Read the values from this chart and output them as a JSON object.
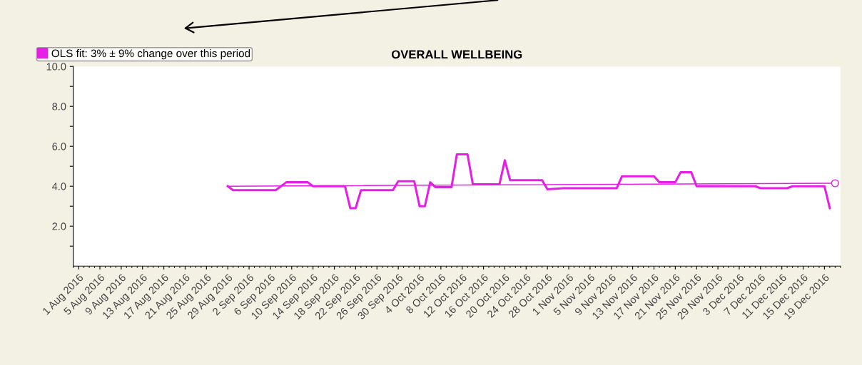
{
  "chart_data": {
    "type": "line",
    "title": "OVERALL WELLBEING",
    "series": [
      {
        "color": "#e61ee6",
        "marker": "none",
        "x": [
          "2016-08-29",
          "2016-08-30",
          "2016-09-07",
          "2016-09-09",
          "2016-09-13",
          "2016-09-14",
          "2016-09-20",
          "2016-09-21",
          "2016-09-22",
          "2016-09-23",
          "2016-09-29",
          "2016-09-30",
          "2016-10-03",
          "2016-10-04",
          "2016-10-05",
          "2016-10-06",
          "2016-10-07",
          "2016-10-10",
          "2016-10-11",
          "2016-10-13",
          "2016-10-14",
          "2016-10-19",
          "2016-10-20",
          "2016-10-21",
          "2016-10-27",
          "2016-10-28",
          "2016-10-31",
          "2016-11-10",
          "2016-11-11",
          "2016-11-17",
          "2016-11-18",
          "2016-11-21",
          "2016-11-22",
          "2016-11-24",
          "2016-11-25",
          "2016-12-06",
          "2016-12-07",
          "2016-12-12",
          "2016-12-13",
          "2016-12-19",
          "2016-12-20"
        ],
        "values": [
          4.0,
          3.8,
          3.8,
          4.2,
          4.2,
          4.0,
          4.0,
          2.9,
          2.9,
          3.8,
          3.8,
          4.25,
          4.25,
          3.0,
          3.0,
          4.2,
          3.95,
          3.95,
          5.6,
          5.6,
          4.1,
          4.1,
          5.3,
          4.3,
          4.3,
          3.85,
          3.9,
          3.9,
          4.5,
          4.5,
          4.2,
          4.2,
          4.7,
          4.7,
          4.0,
          4.0,
          3.9,
          3.9,
          4.0,
          4.0,
          2.9
        ]
      },
      {
        "type": "line",
        "name": "OLS fit: 3% ± 9% change over this period",
        "color": "#e61ee6",
        "marker": "circle",
        "x": [
          "2016-08-29",
          "2016-12-21"
        ],
        "values": [
          4.0,
          4.15
        ]
      }
    ],
    "xlim": [
      "2016-07-31",
      "2016-12-22"
    ],
    "xticks": [
      {
        "value": "2016-08-01",
        "label": "1 Aug 2016"
      },
      {
        "value": "2016-08-05",
        "label": "5 Aug 2016"
      },
      {
        "value": "2016-08-09",
        "label": "9 Aug 2016"
      },
      {
        "value": "2016-08-13",
        "label": "13 Aug 2016"
      },
      {
        "value": "2016-08-17",
        "label": "17 Aug 2016"
      },
      {
        "value": "2016-08-21",
        "label": "21 Aug 2016"
      },
      {
        "value": "2016-08-25",
        "label": "25 Aug 2016"
      },
      {
        "value": "2016-08-29",
        "label": "29 Aug 2016"
      },
      {
        "value": "2016-09-02",
        "label": "2 Sep 2016"
      },
      {
        "value": "2016-09-06",
        "label": "6 Sep 2016"
      },
      {
        "value": "2016-09-10",
        "label": "10 Sep 2016"
      },
      {
        "value": "2016-09-14",
        "label": "14 Sep 2016"
      },
      {
        "value": "2016-09-18",
        "label": "18 Sep 2016"
      },
      {
        "value": "2016-09-22",
        "label": "22 Sep 2016"
      },
      {
        "value": "2016-09-26",
        "label": "26 Sep 2016"
      },
      {
        "value": "2016-09-30",
        "label": "30 Sep 2016"
      },
      {
        "value": "2016-10-04",
        "label": "4 Oct 2016"
      },
      {
        "value": "2016-10-08",
        "label": "8 Oct 2016"
      },
      {
        "value": "2016-10-12",
        "label": "12 Oct 2016"
      },
      {
        "value": "2016-10-16",
        "label": "16 Oct 2016"
      },
      {
        "value": "2016-10-20",
        "label": "20 Oct 2016"
      },
      {
        "value": "2016-10-24",
        "label": "24 Oct 2016"
      },
      {
        "value": "2016-10-28",
        "label": "28 Oct 2016"
      },
      {
        "value": "2016-11-01",
        "label": "1 Nov 2016"
      },
      {
        "value": "2016-11-05",
        "label": "5 Nov 2016"
      },
      {
        "value": "2016-11-09",
        "label": "9 Nov 2016"
      },
      {
        "value": "2016-11-13",
        "label": "13 Nov 2016"
      },
      {
        "value": "2016-11-17",
        "label": "17 Nov 2016"
      },
      {
        "value": "2016-11-21",
        "label": "21 Nov 2016"
      },
      {
        "value": "2016-11-25",
        "label": "25 Nov 2016"
      },
      {
        "value": "2016-11-29",
        "label": "29 Nov 2016"
      },
      {
        "value": "2016-12-03",
        "label": "3 Dec 2016"
      },
      {
        "value": "2016-12-07",
        "label": "7 Dec 2016"
      },
      {
        "value": "2016-12-11",
        "label": "11 Dec 2016"
      },
      {
        "value": "2016-12-15",
        "label": "15 Dec 2016"
      },
      {
        "value": "2016-12-19",
        "label": "19 Dec 2016"
      }
    ],
    "ylim": [
      0,
      10
    ],
    "yticks": [
      {
        "value": 1,
        "label": null
      },
      {
        "value": 2,
        "label": "2.0"
      },
      {
        "value": 3,
        "label": null
      },
      {
        "value": 4,
        "label": "4.0"
      },
      {
        "value": 5,
        "label": null
      },
      {
        "value": 6,
        "label": "6.0"
      },
      {
        "value": 7,
        "label": null
      },
      {
        "value": 8,
        "label": "8.0"
      },
      {
        "value": 9,
        "label": null
      },
      {
        "value": 10,
        "label": "10.0"
      }
    ],
    "grid": false,
    "legend": "top left"
  }
}
